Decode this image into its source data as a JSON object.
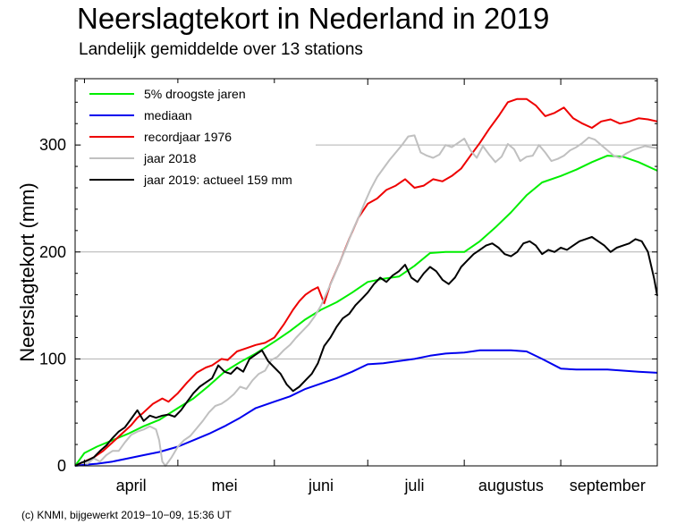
{
  "title": "Neerslagtekort in Nederland in 2019",
  "subtitle": "Landelijk gemiddelde over 13 stations",
  "footer": "(c) KNMI, bijgewerkt 2019−10−09, 15:36 UT",
  "chart_data": {
    "type": "line",
    "ylabel": "Neerslagtekort (mm)",
    "xlabel": "",
    "x_unit": "day of year 2019",
    "xlim": [
      88,
      275
    ],
    "ylim": [
      0,
      362
    ],
    "yticks": [
      0,
      100,
      200,
      300
    ],
    "xtick_labels": [
      {
        "label": "april",
        "x": 106
      },
      {
        "label": "mei",
        "x": 136
      },
      {
        "label": "juni",
        "x": 167
      },
      {
        "label": "juli",
        "x": 197
      },
      {
        "label": "augustus",
        "x": 228
      },
      {
        "label": "september",
        "x": 259
      }
    ],
    "month_boundaries": [
      91,
      121,
      152,
      182,
      213,
      244
    ],
    "grid": "horizontal",
    "legend_position": "top-left",
    "series": [
      {
        "name": "5% droogste jaren",
        "color": "#00ee00",
        "x": [
          88,
          91,
          95,
          100,
          105,
          110,
          115,
          121,
          126,
          131,
          136,
          141,
          146,
          152,
          157,
          162,
          167,
          172,
          177,
          182,
          187,
          192,
          197,
          202,
          207,
          213,
          218,
          223,
          228,
          233,
          238,
          244,
          249,
          254,
          259,
          264,
          269,
          275
        ],
        "y": [
          0,
          12,
          18,
          24,
          30,
          37,
          43,
          54,
          63,
          75,
          88,
          97,
          105,
          116,
          126,
          137,
          146,
          153,
          162,
          172,
          175,
          177,
          187,
          199,
          200,
          200,
          210,
          223,
          237,
          253,
          265,
          271,
          277,
          284,
          290,
          289,
          284,
          276
        ]
      },
      {
        "name": "mediaan",
        "color": "#0000ee",
        "x": [
          88,
          91,
          95,
          100,
          105,
          110,
          115,
          121,
          126,
          131,
          136,
          141,
          146,
          152,
          157,
          162,
          167,
          172,
          177,
          182,
          187,
          192,
          197,
          202,
          207,
          213,
          218,
          223,
          228,
          233,
          238,
          244,
          249,
          254,
          259,
          264,
          269,
          275
        ],
        "y": [
          0,
          1,
          2,
          4,
          7,
          10,
          13,
          18,
          24,
          30,
          37,
          45,
          54,
          60,
          65,
          72,
          77,
          82,
          88,
          95,
          96,
          98,
          100,
          103,
          105,
          106,
          108,
          108,
          108,
          107,
          100,
          91,
          90,
          90,
          90,
          89,
          88,
          87
        ]
      },
      {
        "name": "recordjaar 1976",
        "color": "#ee0000",
        "x": [
          88,
          91,
          94,
          97,
          100,
          103,
          106,
          108,
          110,
          113,
          116,
          118,
          121,
          124,
          127,
          130,
          132,
          135,
          137,
          140,
          143,
          146,
          149,
          152,
          155,
          158,
          160,
          162,
          164,
          166,
          168,
          170,
          173,
          176,
          179,
          182,
          185,
          188,
          191,
          194,
          197,
          200,
          203,
          206,
          209,
          212,
          215,
          218,
          221,
          224,
          227,
          230,
          233,
          236,
          239,
          242,
          245,
          248,
          251,
          254,
          257,
          260,
          263,
          266,
          269,
          272,
          275
        ],
        "y": [
          0,
          4,
          8,
          14,
          22,
          30,
          38,
          45,
          50,
          58,
          63,
          60,
          68,
          78,
          87,
          92,
          94,
          100,
          99,
          107,
          110,
          113,
          115,
          120,
          132,
          146,
          154,
          160,
          164,
          167,
          152,
          170,
          190,
          212,
          232,
          245,
          250,
          258,
          262,
          268,
          260,
          262,
          268,
          266,
          271,
          278,
          290,
          302,
          315,
          327,
          340,
          343,
          343,
          337,
          327,
          330,
          335,
          325,
          320,
          316,
          322,
          324,
          320,
          322,
          325,
          324,
          322
        ]
      },
      {
        "name": "jaar 2018",
        "color": "#c0c0c0",
        "x": [
          88,
          90,
          92,
          94,
          96,
          98,
          100,
          102,
          104,
          106,
          108,
          110,
          112,
          114,
          115,
          116,
          117,
          119,
          121,
          123,
          125,
          127,
          129,
          131,
          133,
          135,
          137,
          139,
          141,
          143,
          145,
          147,
          149,
          151,
          153,
          155,
          157,
          159,
          161,
          163,
          165,
          167,
          169,
          171,
          173,
          175,
          177,
          179,
          181,
          183,
          185,
          187,
          189,
          191,
          193,
          195,
          197,
          199,
          201,
          203,
          205,
          207,
          209,
          211,
          213,
          215,
          217,
          219,
          221,
          223,
          225,
          227,
          229,
          231,
          233,
          235,
          237,
          239,
          241,
          243,
          245,
          247,
          249,
          251,
          253,
          255,
          257,
          259,
          261,
          263,
          265,
          267,
          269,
          271,
          273,
          275
        ],
        "y": [
          0,
          3,
          2,
          7,
          4,
          10,
          14,
          14,
          22,
          29,
          32,
          34,
          37,
          34,
          24,
          4,
          0,
          8,
          18,
          24,
          28,
          35,
          42,
          50,
          56,
          58,
          62,
          67,
          74,
          72,
          80,
          86,
          89,
          99,
          102,
          108,
          113,
          120,
          126,
          132,
          140,
          150,
          163,
          176,
          190,
          204,
          219,
          232,
          246,
          259,
          270,
          278,
          286,
          293,
          300,
          308,
          309,
          293,
          290,
          288,
          291,
          300,
          298,
          302,
          306,
          295,
          288,
          299,
          291,
          284,
          289,
          301,
          296,
          285,
          289,
          290,
          300,
          293,
          285,
          287,
          290,
          295,
          298,
          302,
          307,
          305,
          300,
          295,
          290,
          288,
          292,
          295,
          297,
          299,
          298,
          297
        ]
      },
      {
        "name": "jaar 2019: actueel 159 mm",
        "color": "#000000",
        "x": [
          88,
          90,
          92,
          94,
          96,
          98,
          100,
          102,
          104,
          106,
          108,
          110,
          112,
          114,
          116,
          118,
          120,
          122,
          124,
          126,
          128,
          130,
          132,
          134,
          136,
          138,
          140,
          142,
          144,
          146,
          148,
          150,
          152,
          154,
          156,
          158,
          160,
          162,
          164,
          166,
          168,
          170,
          172,
          174,
          176,
          178,
          180,
          182,
          184,
          186,
          188,
          190,
          192,
          194,
          196,
          198,
          200,
          202,
          204,
          206,
          208,
          210,
          212,
          214,
          216,
          218,
          220,
          222,
          224,
          226,
          228,
          230,
          232,
          234,
          236,
          238,
          240,
          242,
          244,
          246,
          248,
          250,
          252,
          254,
          256,
          258,
          260,
          262,
          264,
          266,
          268,
          270,
          272,
          274,
          275
        ],
        "y": [
          0,
          3,
          5,
          8,
          14,
          19,
          26,
          32,
          36,
          44,
          52,
          42,
          47,
          45,
          47,
          48,
          46,
          52,
          60,
          68,
          74,
          78,
          82,
          94,
          88,
          86,
          92,
          88,
          100,
          104,
          108,
          98,
          92,
          86,
          76,
          70,
          74,
          80,
          86,
          96,
          112,
          120,
          130,
          138,
          142,
          150,
          156,
          162,
          170,
          176,
          172,
          178,
          182,
          188,
          176,
          172,
          180,
          186,
          182,
          174,
          170,
          176,
          186,
          192,
          198,
          202,
          206,
          208,
          204,
          198,
          196,
          200,
          208,
          210,
          206,
          198,
          202,
          200,
          204,
          202,
          206,
          210,
          212,
          214,
          210,
          206,
          200,
          204,
          206,
          208,
          212,
          210,
          200,
          175,
          159
        ]
      }
    ]
  }
}
